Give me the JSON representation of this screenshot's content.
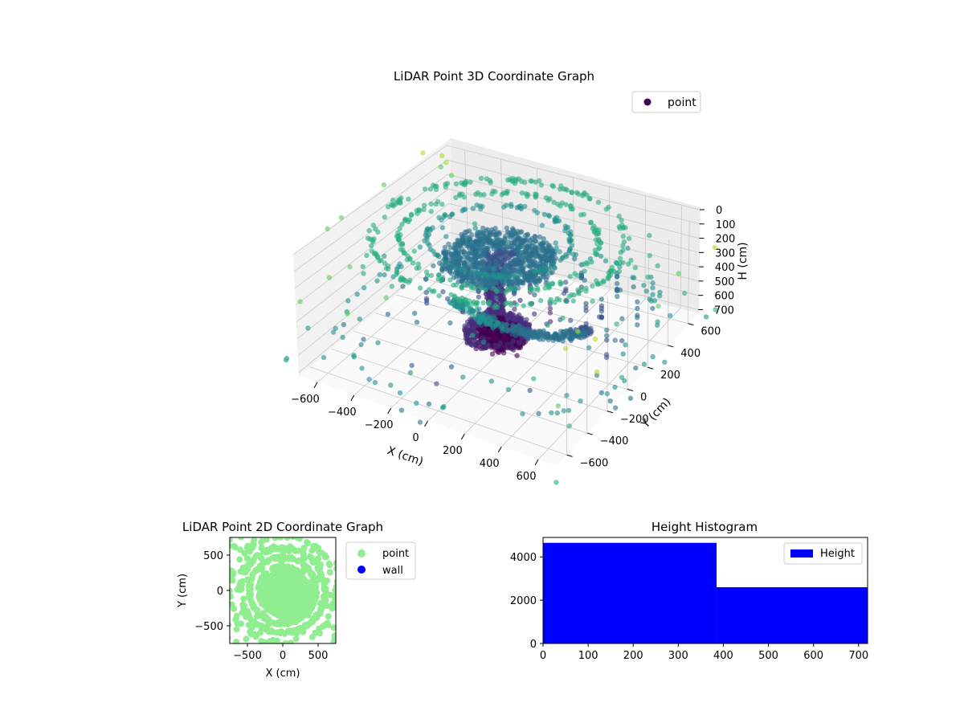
{
  "chart_data": [
    {
      "type": "scatter",
      "title": "LiDAR Point 3D Coordinate Graph",
      "xlabel": "X (cm)",
      "ylabel": "Y (cm)",
      "zlabel": "H (cm)",
      "x_ticks": [
        "−600",
        "−400",
        "−200",
        "0",
        "200",
        "400",
        "600"
      ],
      "y_ticks": [
        "−600",
        "−400",
        "−200",
        "0",
        "200",
        "400",
        "600"
      ],
      "z_ticks": [
        "0",
        "100",
        "200",
        "300",
        "400",
        "500",
        "600",
        "700"
      ],
      "xlim": [
        -700,
        700
      ],
      "ylim": [
        -700,
        700
      ],
      "zlim": [
        0,
        720
      ],
      "zaxis_inverted": true,
      "grid": true,
      "colormap": "viridis",
      "legend": {
        "placement": "top-right",
        "entries": [
          {
            "name": "point",
            "color": "#440154"
          }
        ]
      },
      "structures": [
        {
          "shape": "ring",
          "cx": 0,
          "cy": 0,
          "r": 600,
          "h": 0,
          "n": 190
        },
        {
          "shape": "ring",
          "cx": 0,
          "cy": 0,
          "r": 470,
          "h": 0,
          "n": 150
        },
        {
          "shape": "ring",
          "cx": 0,
          "cy": 0,
          "r": 340,
          "h": 0,
          "n": 115
        },
        {
          "shape": "disc",
          "cx": 0,
          "cy": 0,
          "r": 270,
          "h": 130,
          "n": 950
        },
        {
          "shape": "cylinder",
          "cx": -40,
          "cy": 20,
          "r": 45,
          "h_from": 200,
          "h_to": 560,
          "n": 260
        },
        {
          "shape": "disc",
          "cx": -30,
          "cy": 20,
          "r": 160,
          "h": 620,
          "n": 750
        },
        {
          "shape": "arc",
          "cx": 0,
          "cy": 0,
          "r": 420,
          "h_from": 150,
          "h_to": 520,
          "n": 320
        },
        {
          "shape": "ring",
          "cx": 0,
          "cy": 0,
          "r": 760,
          "h": 560,
          "n": 60
        },
        {
          "shape": "grid_columns",
          "h_from": 500,
          "h_to": 700,
          "n": 130
        },
        {
          "shape": "sparse",
          "h_from": 0,
          "h_to": 720,
          "n": 150
        }
      ]
    },
    {
      "type": "scatter",
      "title": "LiDAR Point 2D Coordinate Graph",
      "xlabel": "X (cm)",
      "ylabel": "Y (cm)",
      "x_ticks": [
        -500,
        0,
        500
      ],
      "y_ticks": [
        -500,
        0,
        500
      ],
      "xlim": [
        -750,
        750
      ],
      "ylim": [
        -750,
        750
      ],
      "legend": {
        "placement": "outside-right",
        "entries": [
          {
            "name": "point",
            "color": "#90ee90"
          },
          {
            "name": "wall",
            "color": "#0000ff"
          }
        ]
      }
    },
    {
      "type": "bar",
      "title": "Height Histogram",
      "categories": [
        "0–385",
        "385–720"
      ],
      "bins": [
        {
          "from": 0,
          "to": 385,
          "count": 4650
        },
        {
          "from": 385,
          "to": 720,
          "count": 2600
        }
      ],
      "series": [
        {
          "name": "Height",
          "color": "#0000ff"
        }
      ],
      "x_ticks": [
        0,
        100,
        200,
        300,
        400,
        500,
        600,
        700
      ],
      "y_ticks": [
        0,
        2000,
        4000
      ],
      "xlim": [
        0,
        720
      ],
      "ylim": [
        0,
        4900
      ],
      "legend": {
        "placement": "top-right"
      }
    }
  ]
}
